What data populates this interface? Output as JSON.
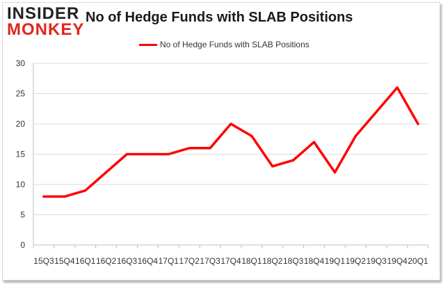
{
  "brand": {
    "line1": "INSIDER",
    "line2": "MONKEY"
  },
  "chart_data": {
    "type": "line",
    "title": "No of Hedge Funds with SLAB Positions",
    "xlabel": "",
    "ylabel": "",
    "categories": [
      "2015Q3",
      "2015Q4",
      "2016Q1",
      "2016Q2",
      "2016Q3",
      "2016Q4",
      "2017Q1",
      "2017Q2",
      "2017Q3",
      "2017Q4",
      "2018Q1",
      "2018Q2",
      "2018Q3",
      "2018Q4",
      "2019Q1",
      "2019Q2",
      "2019Q3",
      "2019Q4",
      "2020Q1"
    ],
    "tick_labels": [
      "15Q3",
      "15Q4",
      "16Q1",
      "16Q2",
      "16Q3",
      "16Q4",
      "17Q1",
      "17Q2",
      "17Q3",
      "17Q4",
      "18Q1",
      "18Q2",
      "18Q3",
      "18Q4",
      "19Q1",
      "19Q2",
      "19Q3",
      "19Q4",
      "20Q1"
    ],
    "series": [
      {
        "name": "No of Hedge Funds with SLAB Positions",
        "color": "#ff0000",
        "values": [
          8,
          8,
          9,
          12,
          15,
          15,
          15,
          16,
          16,
          20,
          18,
          13,
          14,
          17,
          12,
          18,
          22,
          26,
          20
        ]
      }
    ],
    "ylim": [
      0,
      30
    ],
    "yticks": [
      0,
      5,
      10,
      15,
      20,
      25,
      30
    ],
    "grid": true,
    "legend_position": "top-center"
  }
}
